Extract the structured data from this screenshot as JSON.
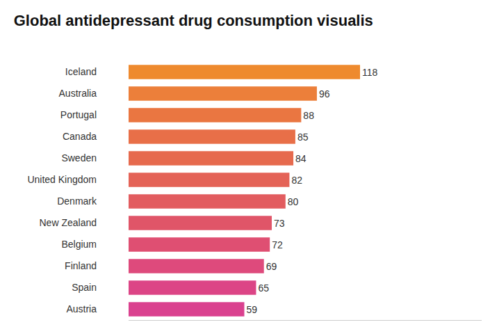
{
  "chart_data": {
    "type": "bar",
    "title": "Global antidepressant drug consumption visualis",
    "orientation": "horizontal",
    "categories": [
      "Iceland",
      "Australia",
      "Portugal",
      "Canada",
      "Sweden",
      "United Kingdom",
      "Denmark",
      "New Zealand",
      "Belgium",
      "Finland",
      "Spain",
      "Austria"
    ],
    "values": [
      118,
      96,
      88,
      85,
      84,
      82,
      80,
      73,
      72,
      69,
      65,
      59
    ],
    "colors": [
      "#EE8A2E",
      "#EC7F3A",
      "#EA7641",
      "#E86F48",
      "#E66A4E",
      "#E46357",
      "#E25C5F",
      "#E05568",
      "#DF4F72",
      "#DE4A7C",
      "#DC4586",
      "#DA418F"
    ],
    "xlim": [
      0,
      180
    ],
    "xticks": [],
    "data_labels": true,
    "tick_labels": "y",
    "grid": false
  }
}
